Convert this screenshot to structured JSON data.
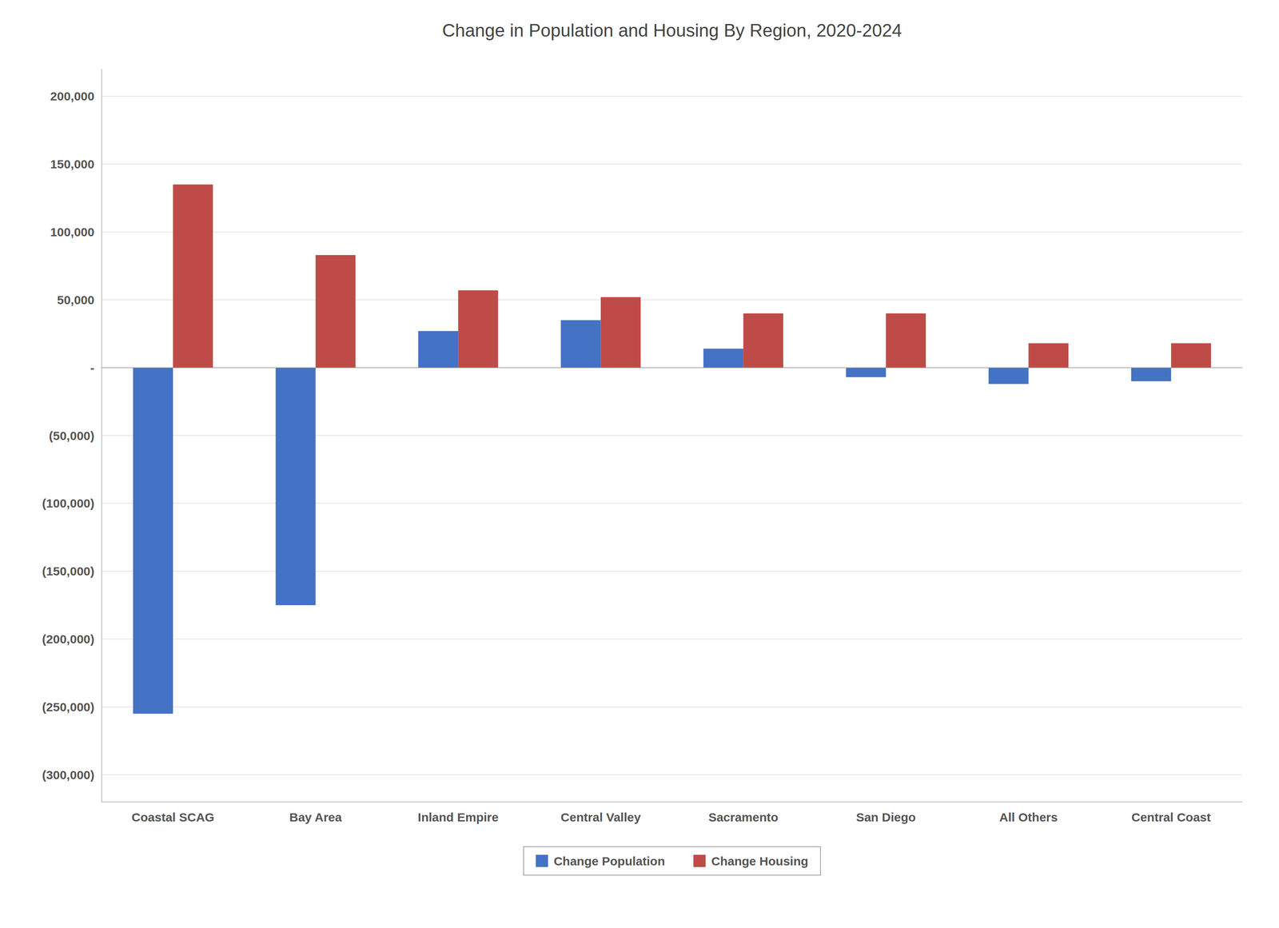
{
  "chart_data": {
    "type": "bar",
    "title": "Change in Population and Housing By Region, 2020-2024",
    "categories": [
      "Coastal SCAG",
      "Bay Area",
      "Inland Empire",
      "Central Valley",
      "Sacramento",
      "San Diego",
      "All Others",
      "Central Coast"
    ],
    "series": [
      {
        "name": "Change Population",
        "color": "#4472C4",
        "values": [
          -255000,
          -175000,
          27000,
          35000,
          14000,
          -7000,
          -12000,
          -10000
        ]
      },
      {
        "name": "Change Housing",
        "color": "#BE4B48",
        "values": [
          135000,
          83000,
          57000,
          52000,
          40000,
          40000,
          18000,
          18000
        ]
      }
    ],
    "ylim": [
      -320000,
      220000
    ],
    "yticks": [
      {
        "value": -300000,
        "label": "(300,000)"
      },
      {
        "value": -250000,
        "label": "(250,000)"
      },
      {
        "value": -200000,
        "label": "(200,000)"
      },
      {
        "value": -150000,
        "label": "(150,000)"
      },
      {
        "value": -100000,
        "label": "(100,000)"
      },
      {
        "value": -50000,
        "label": "(50,000)"
      },
      {
        "value": 0,
        "label": "-"
      },
      {
        "value": 50000,
        "label": "50,000"
      },
      {
        "value": 100000,
        "label": "100,000"
      },
      {
        "value": 150000,
        "label": "150,000"
      },
      {
        "value": 200000,
        "label": "200,000"
      }
    ],
    "grid": true,
    "legend": "bottom"
  }
}
